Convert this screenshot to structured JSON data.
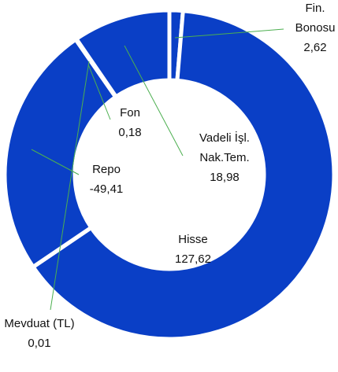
{
  "chart_data": {
    "type": "donut",
    "categories": [
      "Fin. Bonosu",
      "Hisse",
      "Mevduat (TL)",
      "Repo",
      "Fon",
      "Vadeli İşl. Nak.Tem."
    ],
    "values": [
      2.62,
      127.62,
      0.01,
      -49.41,
      0.18,
      18.98
    ],
    "value_labels": [
      "2,62",
      "127,62",
      "0,01",
      "-49,41",
      "0,18",
      "18,98"
    ],
    "color": "#0a3fc6"
  }
}
